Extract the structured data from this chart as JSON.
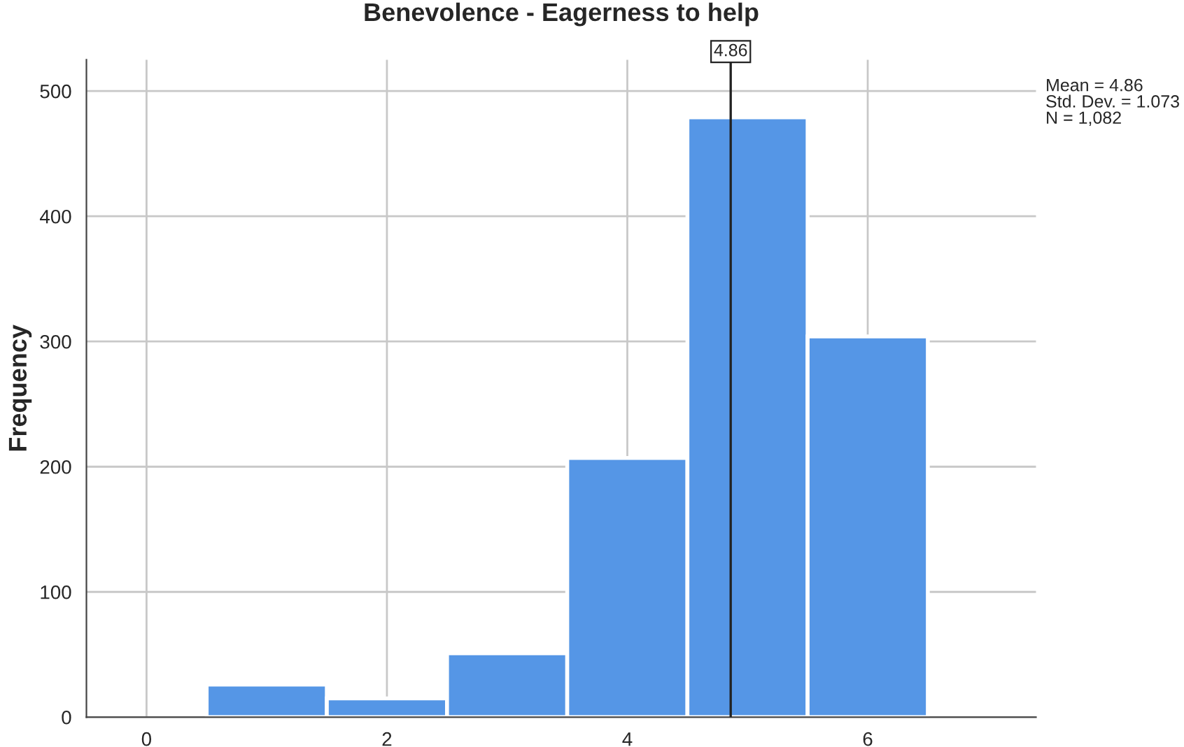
{
  "chart_data": {
    "type": "histogram",
    "title": "Benevolence - Eagerness to help",
    "ylabel": "Frequency",
    "bins": [
      0.5,
      1.5,
      2.5,
      3.5,
      4.5,
      5.5,
      6.5
    ],
    "values": [
      26,
      15,
      51,
      207,
      479,
      304
    ],
    "color": "#5596e6",
    "xlim": [
      -0.5,
      7.4
    ],
    "xticks": [
      0,
      2,
      4,
      6
    ],
    "ylim": [
      0,
      525
    ],
    "yticks": [
      0,
      100,
      200,
      300,
      400,
      500
    ],
    "grid": true,
    "ref_lines": [
      {
        "axis": "x",
        "value": 4.86,
        "label": "4.86",
        "color": "#222222"
      }
    ],
    "annotations": [
      "Mean = 4.86\nStd. Dev. = 1.073\nN = 1,082"
    ]
  }
}
